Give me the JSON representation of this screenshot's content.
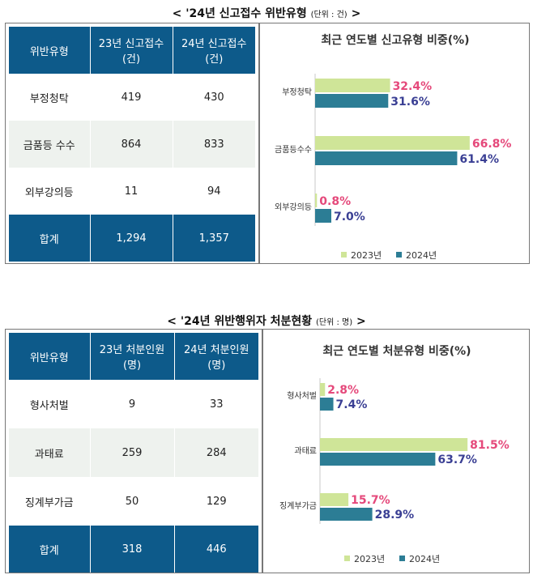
{
  "section1": {
    "caption": "< '24년 신고접수 위반유형",
    "unit": "(단위 : 건)",
    "caption_end": ">",
    "table": {
      "headers": [
        "위반유형",
        "23년 신고접수(건)",
        "24년 신고접수(건)"
      ],
      "rows": [
        [
          "부정청탁",
          "419",
          "430"
        ],
        [
          "금품등 수수",
          "864",
          "833"
        ],
        [
          "외부강의등",
          "11",
          "94"
        ]
      ],
      "total": [
        "합계",
        "1,294",
        "1,357"
      ]
    }
  },
  "section2": {
    "caption": "< '24년 위반행위자 처분현황",
    "unit": "(단위 : 명)",
    "caption_end": ">",
    "table": {
      "headers": [
        "위반유형",
        "23년 처분인원(명)",
        "24년 처분인원(명)"
      ],
      "rows": [
        [
          "형사처벌",
          "9",
          "33"
        ],
        [
          "과태료",
          "259",
          "284"
        ],
        [
          "징계부가금",
          "50",
          "129"
        ]
      ],
      "total": [
        "합계",
        "318",
        "446"
      ]
    }
  },
  "colors": {
    "header_blue": "#0d5a8a",
    "series_2023": "#cfe598",
    "series_2024": "#2c7d95",
    "label_2023": "#e5497b",
    "label_2024": "#3a3f94"
  },
  "chart_data": [
    {
      "type": "bar",
      "orientation": "horizontal",
      "title": "최근 연도별 신고유형 비중(%)",
      "categories": [
        "부정청탁",
        "금품등수수",
        "외부강의등"
      ],
      "series": [
        {
          "name": "2023년",
          "values": [
            32.4,
            66.8,
            0.8
          ],
          "labels": [
            "32.4%",
            "66.8%",
            "0.8%"
          ]
        },
        {
          "name": "2024년",
          "values": [
            31.6,
            61.4,
            7.0
          ],
          "labels": [
            "31.6%",
            "61.4%",
            "7.0%"
          ]
        }
      ],
      "xlim": [
        0,
        70
      ],
      "grid": false,
      "legend": "bottom"
    },
    {
      "type": "bar",
      "orientation": "horizontal",
      "title": "최근 연도별 처분유형 비중(%)",
      "categories": [
        "형사처벌",
        "과태료",
        "징계부가금"
      ],
      "series": [
        {
          "name": "2023년",
          "values": [
            2.8,
            81.5,
            15.7
          ],
          "labels": [
            "2.8%",
            "81.5%",
            "15.7%"
          ]
        },
        {
          "name": "2024년",
          "values": [
            7.4,
            63.7,
            28.9
          ],
          "labels": [
            "7.4%",
            "63.7%",
            "28.9%"
          ]
        }
      ],
      "xlim": [
        0,
        85
      ],
      "grid": false,
      "legend": "bottom"
    }
  ]
}
